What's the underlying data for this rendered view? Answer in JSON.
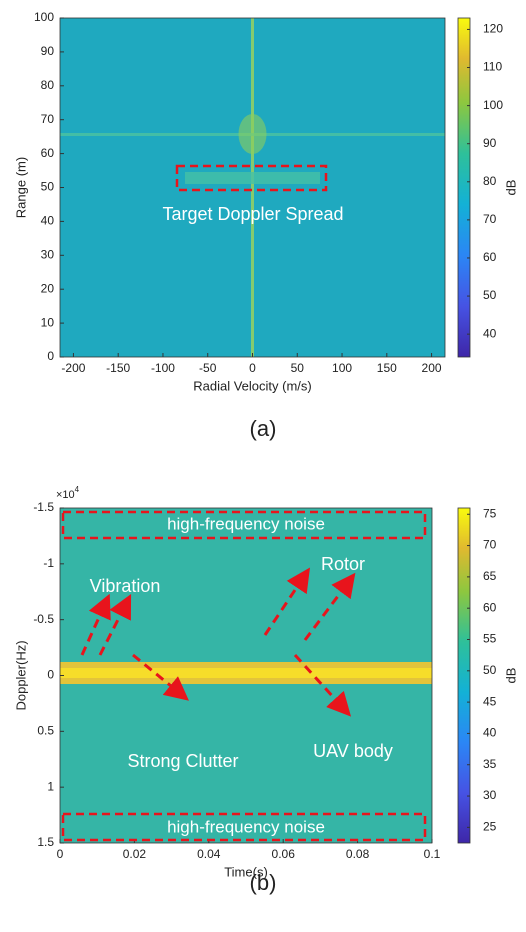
{
  "chart_data": [
    {
      "type": "heatmap",
      "caption": "(a)",
      "xlabel": "Radial Velocity (m/s)",
      "ylabel": "Range (m)",
      "colorbar_label": "dB",
      "xlim": [
        -215,
        215
      ],
      "xticks": [
        -200,
        -150,
        -100,
        -50,
        0,
        50,
        100,
        150,
        200
      ],
      "ylim": [
        0,
        100
      ],
      "yticks": [
        0,
        10,
        20,
        30,
        40,
        50,
        60,
        70,
        80,
        90,
        100
      ],
      "clim": [
        34,
        123
      ],
      "cticks": [
        40,
        50,
        60,
        70,
        80,
        90,
        100,
        110,
        120
      ],
      "annotations": [
        "Target Doppler Spread"
      ]
    },
    {
      "type": "heatmap",
      "caption": "(b)",
      "xlabel": "Time(s)",
      "ylabel": "Doppler(Hz)",
      "colorbar_label": "dB",
      "xlim": [
        0,
        0.1
      ],
      "xticks": [
        0,
        0.02,
        0.04,
        0.06,
        0.08,
        0.1
      ],
      "ylim": [
        -1.5,
        1.5
      ],
      "y_reversed": true,
      "yticks": [
        -1.5,
        -1,
        -0.5,
        0,
        0.5,
        1,
        1.5
      ],
      "y_scale_label": "×10",
      "y_exponent": 4,
      "clim": [
        22.5,
        76
      ],
      "cticks": [
        25,
        30,
        35,
        40,
        45,
        50,
        55,
        60,
        65,
        70,
        75
      ],
      "annotations": [
        "high-frequency noise",
        "high-frequency noise",
        "Vibration",
        "Rotor",
        "Strong Clutter",
        "UAV body"
      ]
    }
  ]
}
